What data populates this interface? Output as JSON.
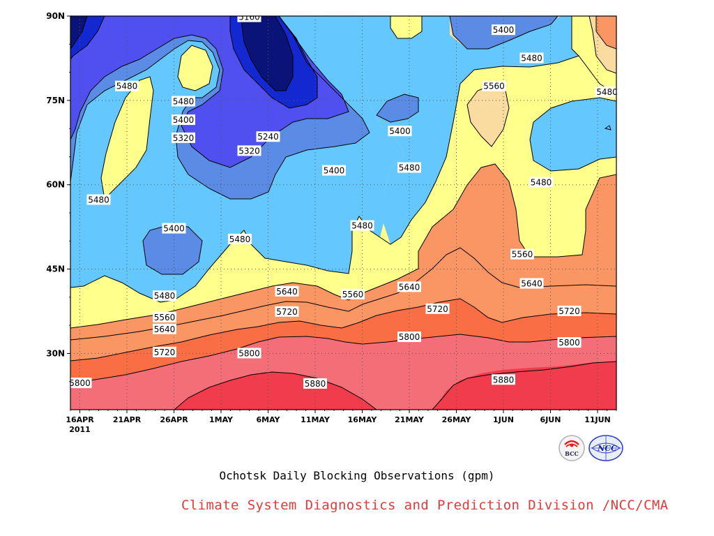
{
  "chart_data": {
    "type": "heatmap",
    "subtype": "filled-contour (time-latitude)",
    "title": "Ochotsk Daily Blocking Observations (gpm)",
    "xlabel": "",
    "ylabel": "",
    "x_ticks": [
      "16APR",
      "21APR",
      "26APR",
      "1MAY",
      "6MAY",
      "11MAY",
      "16MAY",
      "21MAY",
      "26MAY",
      "1JUN",
      "6JUN",
      "11JUN"
    ],
    "x_year_label": "2011",
    "y_ticks": [
      "30N",
      "45N",
      "60N",
      "75N",
      "90N"
    ],
    "y_tick_values": [
      30,
      45,
      60,
      75,
      90
    ],
    "x_range": [
      "2011-04-15",
      "2011-06-12"
    ],
    "y_range": [
      20,
      90
    ],
    "grid": "dotted",
    "contour_levels": [
      5160,
      5240,
      5320,
      5400,
      5480,
      5560,
      5640,
      5720,
      5800,
      5880
    ],
    "fill_colors": [
      "#0a1478",
      "#1428d2",
      "#5050f0",
      "#5a8ce6",
      "#64c8ff",
      "#ffff8c",
      "#fadca0",
      "#fa9664",
      "#fa6e46",
      "#f46e78",
      "#f03c4b"
    ],
    "bands_by_latitude_sample": [
      {
        "date": "2011-04-16",
        "latitude": 25,
        "value": 5800
      },
      {
        "date": "2011-04-16",
        "latitude": 33,
        "value": 5720
      },
      {
        "date": "2011-04-16",
        "latitude": 37,
        "value": 5560
      },
      {
        "date": "2011-04-16",
        "latitude": 60,
        "value": 5480
      },
      {
        "date": "2011-05-06",
        "latitude": 83,
        "value": 5160
      },
      {
        "date": "2011-05-11",
        "latitude": 24,
        "value": 5880
      },
      {
        "date": "2011-05-26",
        "latitude": 78,
        "value": 5560
      },
      {
        "date": "2011-06-11",
        "latitude": 22,
        "value": 5880
      }
    ],
    "contour_labels": [
      {
        "text": "5160",
        "date": "2011-05-04",
        "lat": 89.8
      },
      {
        "text": "5400",
        "date": "2011-05-31",
        "lat": 87.5
      },
      {
        "text": "5480",
        "date": "2011-04-21",
        "lat": 77.5
      },
      {
        "text": "5480",
        "date": "2011-04-27",
        "lat": 74.8
      },
      {
        "text": "5480",
        "date": "2011-06-03",
        "lat": 82.5
      },
      {
        "text": "5560",
        "date": "2011-05-30",
        "lat": 77.5
      },
      {
        "text": "5480",
        "date": "2011-06-11",
        "lat": 76.5
      },
      {
        "text": "5400",
        "date": "2011-04-27",
        "lat": 71.5
      },
      {
        "text": "5400",
        "date": "2011-05-20",
        "lat": 69.5
      },
      {
        "text": "5320",
        "date": "2011-04-27",
        "lat": 68.3
      },
      {
        "text": "5240",
        "date": "2011-05-06",
        "lat": 68.5
      },
      {
        "text": "5320",
        "date": "2011-05-04",
        "lat": 66.0
      },
      {
        "text": "5400",
        "date": "2011-05-13",
        "lat": 62.5
      },
      {
        "text": "5480",
        "date": "2011-05-21",
        "lat": 63.0
      },
      {
        "text": "5480",
        "date": "2011-06-04",
        "lat": 60.4
      },
      {
        "text": "5480",
        "date": "2011-04-18",
        "lat": 57.3
      },
      {
        "text": "5400",
        "date": "2011-04-26",
        "lat": 52.2
      },
      {
        "text": "5480",
        "date": "2011-05-03",
        "lat": 50.3
      },
      {
        "text": "5480",
        "date": "2011-05-16",
        "lat": 52.7
      },
      {
        "text": "5560",
        "date": "2011-06-02",
        "lat": 47.6
      },
      {
        "text": "5480",
        "date": "2011-04-25",
        "lat": 40.2
      },
      {
        "text": "5640",
        "date": "2011-05-08",
        "lat": 41.0
      },
      {
        "text": "5560",
        "date": "2011-05-15",
        "lat": 40.5
      },
      {
        "text": "5640",
        "date": "2011-05-21",
        "lat": 41.8
      },
      {
        "text": "5720",
        "date": "2011-05-24",
        "lat": 37.9
      },
      {
        "text": "5720",
        "date": "2011-05-08",
        "lat": 37.4
      },
      {
        "text": "5560",
        "date": "2011-04-25",
        "lat": 36.4
      },
      {
        "text": "5640",
        "date": "2011-06-03",
        "lat": 42.4
      },
      {
        "text": "5720",
        "date": "2011-06-07",
        "lat": 37.5
      },
      {
        "text": "5640",
        "date": "2011-04-25",
        "lat": 34.3
      },
      {
        "text": "5720",
        "date": "2011-04-25",
        "lat": 30.2
      },
      {
        "text": "5800",
        "date": "2011-05-04",
        "lat": 30.0
      },
      {
        "text": "5800",
        "date": "2011-05-21",
        "lat": 32.9
      },
      {
        "text": "5800",
        "date": "2011-06-07",
        "lat": 31.9
      },
      {
        "text": "5880",
        "date": "2011-05-11",
        "lat": 24.6
      },
      {
        "text": "5880",
        "date": "2011-05-31",
        "lat": 25.3
      },
      {
        "text": "5800",
        "date": "2011-04-16",
        "lat": 24.7
      }
    ]
  },
  "footer_text": "Climate System Diagnostics and Prediction Division /NCC/CMA",
  "logos": {
    "left_text": "BCC",
    "right_text": "NCC"
  },
  "colors": {
    "footer": "#e23a3a"
  }
}
